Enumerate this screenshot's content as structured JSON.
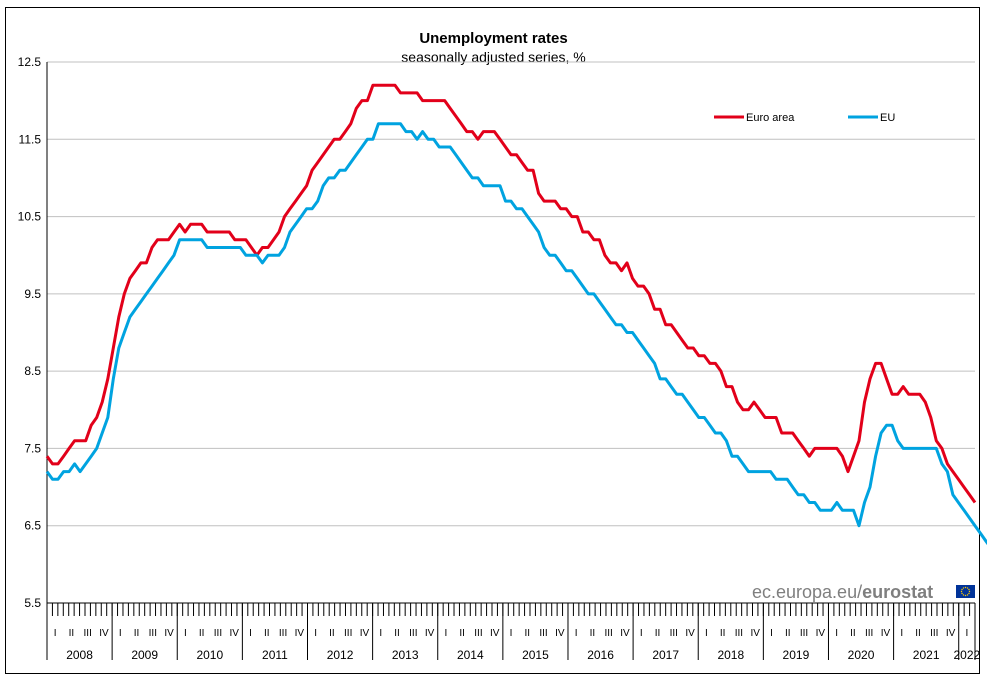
{
  "chart_data": {
    "type": "line",
    "title": "Unemployment rates",
    "subtitle": "seasonally adjusted series, %",
    "ylim": [
      5.5,
      12.5
    ],
    "yticks": [
      "12.5",
      "11.5",
      "10.5",
      "9.5",
      "8.5",
      "7.5",
      "6.5",
      "5.5"
    ],
    "quarter_labels": [
      "I",
      "II",
      "III",
      "IV"
    ],
    "years": [
      "2008",
      "2009",
      "2010",
      "2011",
      "2012",
      "2013",
      "2014",
      "2015",
      "2016",
      "2017",
      "2018",
      "2019",
      "2020",
      "2021",
      "2022"
    ],
    "grid": true,
    "legend": "top-right",
    "series": [
      {
        "name": "Euro area",
        "color": "#e2001a",
        "values": [
          7.4,
          7.3,
          7.3,
          7.4,
          7.5,
          7.6,
          7.6,
          7.6,
          7.8,
          7.9,
          8.1,
          8.4,
          8.8,
          9.2,
          9.5,
          9.7,
          9.8,
          9.9,
          9.9,
          10.1,
          10.2,
          10.2,
          10.2,
          10.3,
          10.4,
          10.3,
          10.4,
          10.4,
          10.4,
          10.3,
          10.3,
          10.3,
          10.3,
          10.3,
          10.2,
          10.2,
          10.2,
          10.1,
          10.0,
          10.1,
          10.1,
          10.2,
          10.3,
          10.5,
          10.6,
          10.7,
          10.8,
          10.9,
          11.1,
          11.2,
          11.3,
          11.4,
          11.5,
          11.5,
          11.6,
          11.7,
          11.9,
          12.0,
          12.0,
          12.2,
          12.2,
          12.2,
          12.2,
          12.2,
          12.1,
          12.1,
          12.1,
          12.1,
          12.0,
          12.0,
          12.0,
          12.0,
          12.0,
          11.9,
          11.8,
          11.7,
          11.6,
          11.6,
          11.5,
          11.6,
          11.6,
          11.6,
          11.5,
          11.4,
          11.3,
          11.3,
          11.2,
          11.1,
          11.1,
          10.8,
          10.7,
          10.7,
          10.7,
          10.6,
          10.6,
          10.5,
          10.5,
          10.3,
          10.3,
          10.2,
          10.2,
          10.0,
          9.9,
          9.9,
          9.8,
          9.9,
          9.7,
          9.6,
          9.6,
          9.5,
          9.3,
          9.3,
          9.1,
          9.1,
          9.0,
          8.9,
          8.8,
          8.8,
          8.7,
          8.7,
          8.6,
          8.6,
          8.5,
          8.3,
          8.3,
          8.1,
          8.0,
          8.0,
          8.1,
          8.0,
          7.9,
          7.9,
          7.9,
          7.7,
          7.7,
          7.7,
          7.6,
          7.5,
          7.4,
          7.5,
          7.5,
          7.5,
          7.5,
          7.5,
          7.4,
          7.2,
          7.4,
          7.6,
          8.1,
          8.4,
          8.6,
          8.6,
          8.4,
          8.2,
          8.2,
          8.3,
          8.2,
          8.2,
          8.2,
          8.1,
          7.9,
          7.6,
          7.5,
          7.3,
          7.2,
          7.1,
          7.0,
          6.9,
          6.8
        ]
      },
      {
        "name": "EU",
        "color": "#00a3e0",
        "values": [
          7.2,
          7.1,
          7.1,
          7.2,
          7.2,
          7.3,
          7.2,
          7.3,
          7.4,
          7.5,
          7.7,
          7.9,
          8.4,
          8.8,
          9.0,
          9.2,
          9.3,
          9.4,
          9.5,
          9.6,
          9.7,
          9.8,
          9.9,
          10.0,
          10.2,
          10.2,
          10.2,
          10.2,
          10.2,
          10.1,
          10.1,
          10.1,
          10.1,
          10.1,
          10.1,
          10.1,
          10.0,
          10.0,
          10.0,
          9.9,
          10.0,
          10.0,
          10.0,
          10.1,
          10.3,
          10.4,
          10.5,
          10.6,
          10.6,
          10.7,
          10.9,
          11.0,
          11.0,
          11.1,
          11.1,
          11.2,
          11.3,
          11.4,
          11.5,
          11.5,
          11.7,
          11.7,
          11.7,
          11.7,
          11.7,
          11.6,
          11.6,
          11.5,
          11.6,
          11.5,
          11.5,
          11.4,
          11.4,
          11.4,
          11.3,
          11.2,
          11.1,
          11.0,
          11.0,
          10.9,
          10.9,
          10.9,
          10.9,
          10.7,
          10.7,
          10.6,
          10.6,
          10.5,
          10.4,
          10.3,
          10.1,
          10.0,
          10.0,
          9.9,
          9.8,
          9.8,
          9.7,
          9.6,
          9.5,
          9.5,
          9.4,
          9.3,
          9.2,
          9.1,
          9.1,
          9.0,
          9.0,
          8.9,
          8.8,
          8.7,
          8.6,
          8.4,
          8.4,
          8.3,
          8.2,
          8.2,
          8.1,
          8.0,
          7.9,
          7.9,
          7.8,
          7.7,
          7.7,
          7.6,
          7.4,
          7.4,
          7.3,
          7.2,
          7.2,
          7.2,
          7.2,
          7.2,
          7.1,
          7.1,
          7.1,
          7.0,
          6.9,
          6.9,
          6.8,
          6.8,
          6.7,
          6.7,
          6.7,
          6.8,
          6.7,
          6.7,
          6.7,
          6.5,
          6.8,
          7.0,
          7.4,
          7.7,
          7.8,
          7.8,
          7.6,
          7.5,
          7.5,
          7.5,
          7.5,
          7.5,
          7.5,
          7.5,
          7.3,
          7.2,
          6.9,
          6.8,
          6.7,
          6.6,
          6.5,
          6.4,
          6.3,
          6.2
        ]
      }
    ],
    "source_prefix": "ec.europa.eu/",
    "source_brand": "eurostat"
  }
}
